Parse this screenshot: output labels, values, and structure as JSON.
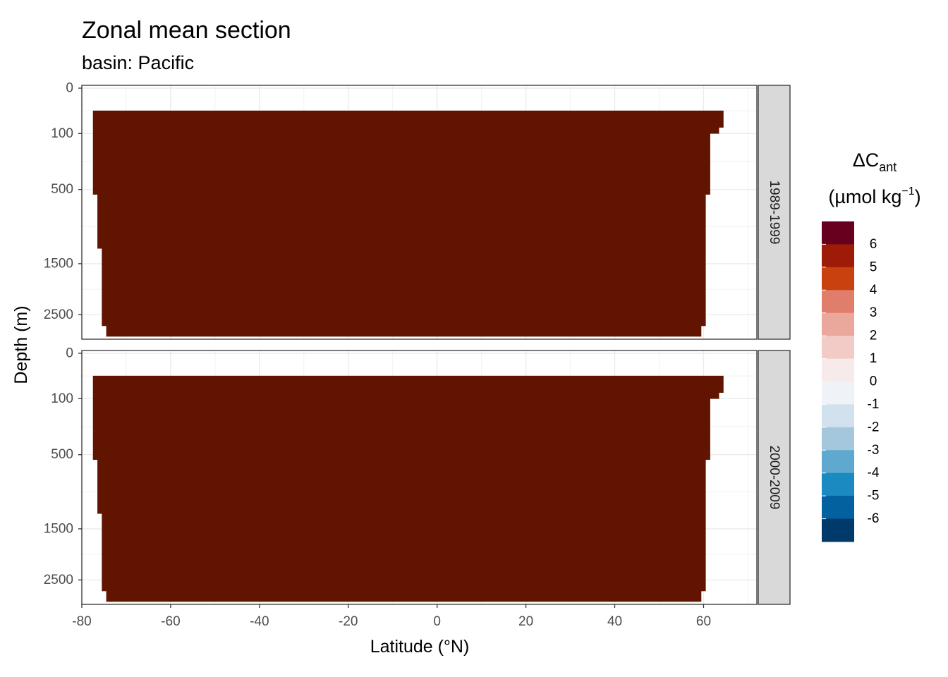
{
  "chart_data": {
    "type": "heatmap",
    "title": "Zonal mean section",
    "subtitle": "basin: Pacific",
    "xlabel": "Latitude (°N)",
    "ylabel": "Depth (m)",
    "xlim": [
      -80,
      72
    ],
    "x_ticks": [
      -80,
      -60,
      -40,
      -20,
      0,
      20,
      40,
      60
    ],
    "x_tick_labels": [
      "-80",
      "-60",
      "-40",
      "-20",
      "0",
      "20",
      "40",
      "60"
    ],
    "y_ticks": [
      0,
      100,
      500,
      1500,
      2500
    ],
    "y_tick_labels": [
      "0",
      "100",
      "500",
      "1500",
      "2500"
    ],
    "y_reversed": true,
    "y_scale": "sqrt",
    "grid": true,
    "legend_placement": "right",
    "facets": [
      {
        "label": "1989-1999",
        "section": [
          {
            "depth_top": 25,
            "depth_bottom": 75,
            "lat_min": -77.5,
            "lat_max": 64.5,
            "value": 6.5
          },
          {
            "depth_top": 75,
            "depth_bottom": 100,
            "lat_min": -77.5,
            "lat_max": 63.5,
            "value": 6.5
          },
          {
            "depth_top": 100,
            "depth_bottom": 550,
            "lat_min": -77.5,
            "lat_max": 61.5,
            "value": 6.5
          },
          {
            "depth_top": 550,
            "depth_bottom": 1250,
            "lat_min": -76.5,
            "lat_max": 60.5,
            "value": 6.5
          },
          {
            "depth_top": 1250,
            "depth_bottom": 2750,
            "lat_min": -75.5,
            "lat_max": 60.5,
            "value": 6.5
          },
          {
            "depth_top": 2750,
            "depth_bottom": 3000,
            "lat_min": -74.5,
            "lat_max": 59.5,
            "value": 6.5
          }
        ]
      },
      {
        "label": "2000-2009",
        "section": [
          {
            "depth_top": 25,
            "depth_bottom": 75,
            "lat_min": -77.5,
            "lat_max": 64.5,
            "value": 6.5
          },
          {
            "depth_top": 75,
            "depth_bottom": 100,
            "lat_min": -77.5,
            "lat_max": 63.5,
            "value": 6.5
          },
          {
            "depth_top": 100,
            "depth_bottom": 550,
            "lat_min": -77.5,
            "lat_max": 61.5,
            "value": 6.5
          },
          {
            "depth_top": 550,
            "depth_bottom": 1250,
            "lat_min": -76.5,
            "lat_max": 60.5,
            "value": 6.5
          },
          {
            "depth_top": 1250,
            "depth_bottom": 2750,
            "lat_min": -75.5,
            "lat_max": 60.5,
            "value": 6.5
          },
          {
            "depth_top": 2750,
            "depth_bottom": 3000,
            "lat_min": -74.5,
            "lat_max": 59.5,
            "value": 6.5
          }
        ]
      }
    ],
    "legend": {
      "title_main": "ΔC",
      "title_sub": "ant",
      "unit_prefix": "(µmol kg",
      "unit_sup": "−1",
      "unit_suffix": ")",
      "labels": [
        "6",
        "5",
        "4",
        "3",
        "2",
        "1",
        "0",
        "-1",
        "-2",
        "-3",
        "-4",
        "-5",
        "-6"
      ],
      "colors_top_to_bottom": [
        "#67001F",
        "#9E1B07",
        "#C8410F",
        "#E07D6B",
        "#EAA89D",
        "#F2CBC6",
        "#F6EAEA",
        "#EFF3F7",
        "#D1E1EE",
        "#A4C7DD",
        "#5FA9D0",
        "#1A8AC0",
        "#0361A0",
        "#003A6B"
      ]
    },
    "fill_color": "#611400"
  }
}
